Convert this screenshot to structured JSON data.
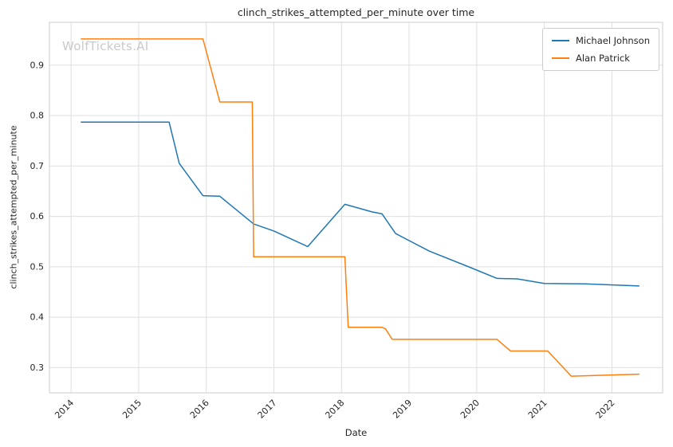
{
  "chart_data": {
    "type": "line",
    "title": "clinch_strikes_attempted_per_minute over time",
    "xlabel": "Date",
    "ylabel": "clinch_strikes_attempted_per_minute",
    "watermark": "WolfTickets.AI",
    "watermark_color": "#c9c9c9",
    "background": "#ffffff",
    "grid": true,
    "grid_color": "#dfdfdf",
    "border_color": "#cccccc",
    "tick_color": "#262626",
    "legend_position": "upper right",
    "xlim": [
      2013.68,
      2022.75
    ],
    "ylim": [
      0.25,
      0.985
    ],
    "xticks": [
      2014,
      2015,
      2016,
      2017,
      2018,
      2019,
      2020,
      2021,
      2022
    ],
    "yticks": [
      0.3,
      0.4,
      0.5,
      0.6,
      0.7,
      0.8,
      0.9
    ],
    "series": [
      {
        "name": "Michael Johnson",
        "color": "#1f77b4",
        "x": [
          2014.15,
          2015.45,
          2015.6,
          2015.95,
          2016.2,
          2016.7,
          2017.0,
          2017.5,
          2018.05,
          2018.45,
          2018.6,
          2018.8,
          2019.3,
          2019.9,
          2020.3,
          2020.6,
          2021.0,
          2021.6,
          2022.4
        ],
        "y": [
          0.787,
          0.787,
          0.705,
          0.641,
          0.64,
          0.585,
          0.571,
          0.54,
          0.624,
          0.609,
          0.605,
          0.566,
          0.531,
          0.499,
          0.477,
          0.476,
          0.467,
          0.466,
          0.462
        ]
      },
      {
        "name": "Alan Patrick",
        "color": "#ff7f0e",
        "x": [
          2014.15,
          2015.95,
          2016.2,
          2016.68,
          2016.7,
          2018.05,
          2018.1,
          2018.6,
          2018.65,
          2018.75,
          2020.3,
          2020.5,
          2021.05,
          2021.4,
          2022.4
        ],
        "y": [
          0.952,
          0.952,
          0.827,
          0.827,
          0.52,
          0.52,
          0.38,
          0.38,
          0.377,
          0.356,
          0.356,
          0.333,
          0.333,
          0.283,
          0.287
        ]
      }
    ]
  }
}
